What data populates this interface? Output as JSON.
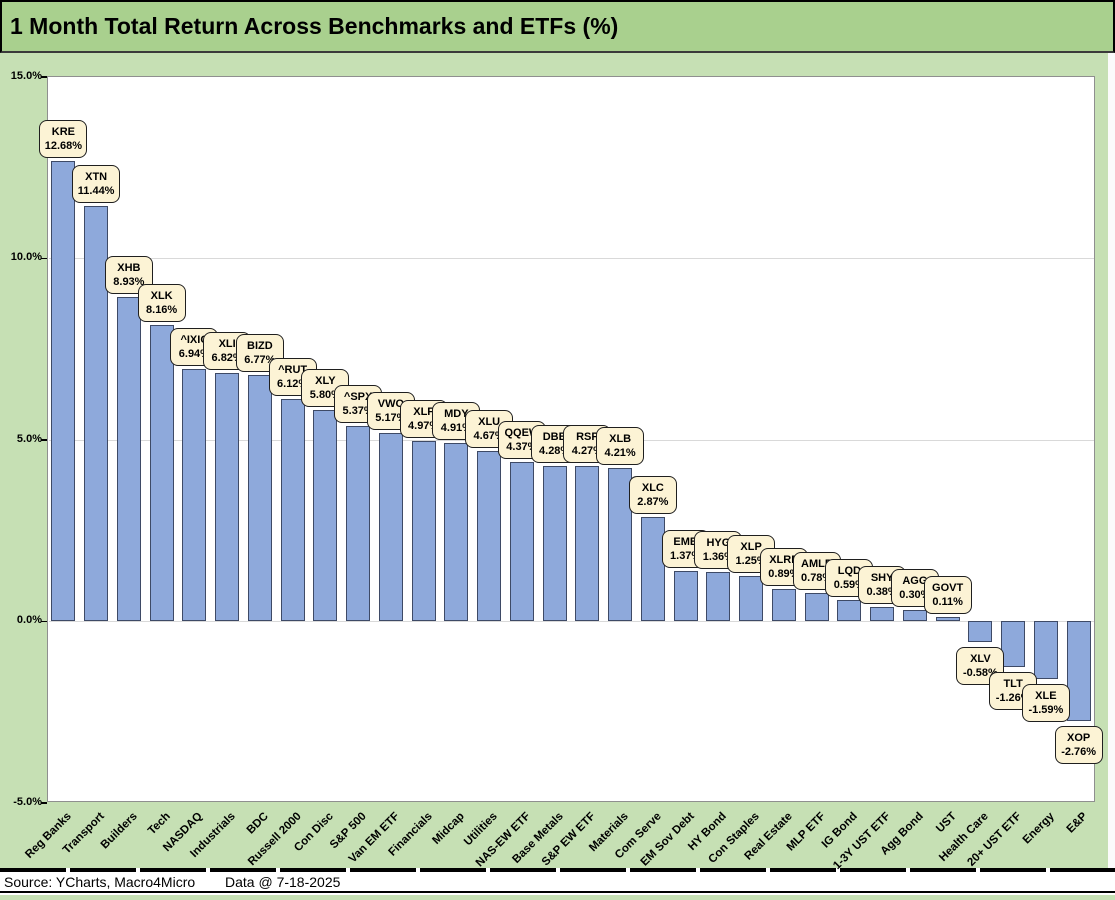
{
  "title": "1 Month Total Return Across Benchmarks and ETFs (%)",
  "footer": {
    "source": "Source: YCharts, Macro4Micro",
    "data_date": "Data @ 7-18-2025"
  },
  "colors": {
    "title_bg": "#A9D08E",
    "canvas_bg": "#C6E0B4",
    "plot_bg": "#FFFFFF",
    "bar_fill": "#8EA9DB",
    "bar_border": "#3E4A66",
    "callout_bg": "#FCF3D5",
    "callout_border": "#1F1F1F",
    "gridline": "#D9D9D9"
  },
  "chart_data": {
    "type": "bar",
    "title": "1 Month Total Return Across Benchmarks and ETFs (%)",
    "xlabel": "",
    "ylabel": "",
    "ylim": [
      -5,
      15
    ],
    "grid": true,
    "legend_position": "none",
    "y_ticks": [
      {
        "label": "15.0%",
        "value": 15
      },
      {
        "label": "10.0%",
        "value": 10
      },
      {
        "label": "5.0%",
        "value": 5
      },
      {
        "label": "0.0%",
        "value": 0
      },
      {
        "label": "-5.0%",
        "value": -5
      }
    ],
    "points": [
      {
        "category": "Reg Banks",
        "ticker": "KRE",
        "value": 12.68,
        "label": "12.68%"
      },
      {
        "category": "Transport",
        "ticker": "XTN",
        "value": 11.44,
        "label": "11.44%"
      },
      {
        "category": "Builders",
        "ticker": "XHB",
        "value": 8.93,
        "label": "8.93%"
      },
      {
        "category": "Tech",
        "ticker": "XLK",
        "value": 8.16,
        "label": "8.16%"
      },
      {
        "category": "NASDAQ",
        "ticker": "^IXIC",
        "value": 6.94,
        "label": "6.94%"
      },
      {
        "category": "Industrials",
        "ticker": "XLI",
        "value": 6.82,
        "label": "6.82%"
      },
      {
        "category": "BDC",
        "ticker": "BIZD",
        "value": 6.77,
        "label": "6.77%"
      },
      {
        "category": "Russell 2000",
        "ticker": "^RUT",
        "value": 6.12,
        "label": "6.12%"
      },
      {
        "category": "Con Disc",
        "ticker": "XLY",
        "value": 5.8,
        "label": "5.80%"
      },
      {
        "category": "S&P 500",
        "ticker": "^SPX",
        "value": 5.37,
        "label": "5.37%"
      },
      {
        "category": "Van EM ETF",
        "ticker": "VWO",
        "value": 5.17,
        "label": "5.17%"
      },
      {
        "category": "Financials",
        "ticker": "XLF",
        "value": 4.97,
        "label": "4.97%"
      },
      {
        "category": "Midcap",
        "ticker": "MDY",
        "value": 4.91,
        "label": "4.91%"
      },
      {
        "category": "Utilities",
        "ticker": "XLU",
        "value": 4.67,
        "label": "4.67%"
      },
      {
        "category": "NAS-EW ETF",
        "ticker": "QQEW",
        "value": 4.37,
        "label": "4.37%"
      },
      {
        "category": "Base Metals",
        "ticker": "DBB",
        "value": 4.28,
        "label": "4.28%"
      },
      {
        "category": "S&P EW ETF",
        "ticker": "RSP",
        "value": 4.27,
        "label": "4.27%"
      },
      {
        "category": "Materials",
        "ticker": "XLB",
        "value": 4.21,
        "label": "4.21%"
      },
      {
        "category": "Com Serve",
        "ticker": "XLC",
        "value": 2.87,
        "label": "2.87%"
      },
      {
        "category": "EM Sov Debt",
        "ticker": "EMB",
        "value": 1.37,
        "label": "1.37%"
      },
      {
        "category": "HY Bond",
        "ticker": "HYG",
        "value": 1.36,
        "label": "1.36%"
      },
      {
        "category": "Con Staples",
        "ticker": "XLP",
        "value": 1.25,
        "label": "1.25%"
      },
      {
        "category": "Real Estate",
        "ticker": "XLRE",
        "value": 0.89,
        "label": "0.89%"
      },
      {
        "category": "MLP ETF",
        "ticker": "AMLP",
        "value": 0.78,
        "label": "0.78%"
      },
      {
        "category": "IG Bond",
        "ticker": "LQD",
        "value": 0.59,
        "label": "0.59%"
      },
      {
        "category": "1-3Y UST ETF",
        "ticker": "SHY",
        "value": 0.38,
        "label": "0.38%"
      },
      {
        "category": "Agg Bond",
        "ticker": "AGG",
        "value": 0.3,
        "label": "0.30%"
      },
      {
        "category": "UST",
        "ticker": "GOVT",
        "value": 0.11,
        "label": "0.11%"
      },
      {
        "category": "Health Care",
        "ticker": "XLV",
        "value": -0.58,
        "label": "-0.58%"
      },
      {
        "category": "20+ UST ETF",
        "ticker": "TLT",
        "value": -1.26,
        "label": "-1.26%"
      },
      {
        "category": "Energy",
        "ticker": "XLE",
        "value": -1.59,
        "label": "-1.59%"
      },
      {
        "category": "E&P",
        "ticker": "XOP",
        "value": -2.76,
        "label": "-2.76%"
      }
    ]
  }
}
